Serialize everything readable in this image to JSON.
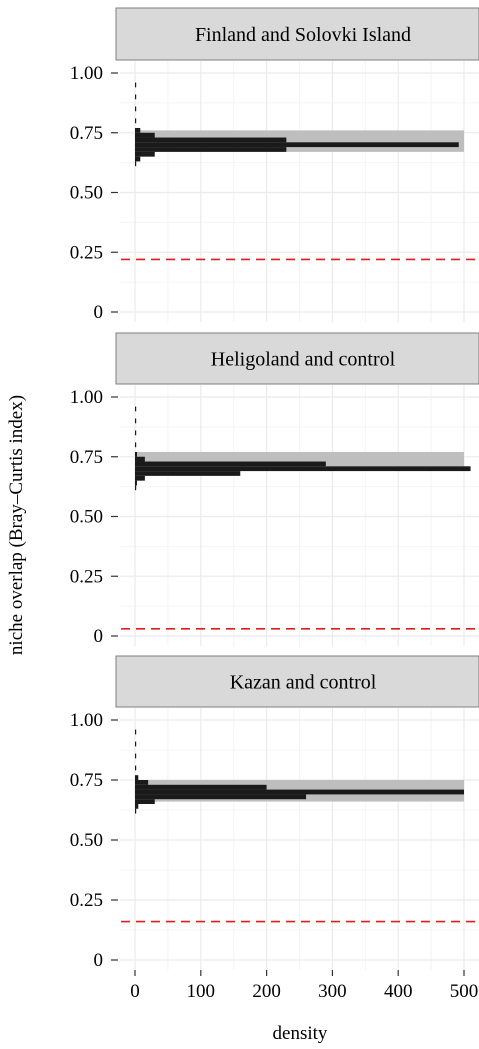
{
  "chart_data": {
    "type": "histogram",
    "xlabel": "density",
    "ylabel": "niche overlap (Bray–Curtis index)",
    "xlim": [
      0,
      500
    ],
    "ylim": [
      0,
      1
    ],
    "x_ticks": [
      0,
      100,
      200,
      300,
      400,
      500
    ],
    "y_ticks": [
      0,
      0.25,
      0.5,
      0.75,
      1.0
    ],
    "y_tick_labels": [
      "0",
      "0.25",
      "0.50",
      "0.75",
      "1.00"
    ],
    "grid": true,
    "colors": {
      "bars": "#1a1a1a",
      "band": "#bebebe",
      "threshold": "#e41a1c",
      "strip": "#d9d9d9",
      "grid": "#ebebeb"
    },
    "panels": [
      {
        "title": "Finland and Solovki Island",
        "threshold": 0.22,
        "band": [
          0.67,
          0.76
        ],
        "bars": [
          {
            "y": 0.62,
            "density": 1
          },
          {
            "y": 0.64,
            "density": 8
          },
          {
            "y": 0.66,
            "density": 30
          },
          {
            "y": 0.68,
            "density": 230
          },
          {
            "y": 0.7,
            "density": 492
          },
          {
            "y": 0.72,
            "density": 230
          },
          {
            "y": 0.74,
            "density": 30
          },
          {
            "y": 0.76,
            "density": 8
          },
          {
            "y": 0.8,
            "density": 1
          },
          {
            "y": 0.85,
            "density": 1
          },
          {
            "y": 0.9,
            "density": 1
          },
          {
            "y": 0.95,
            "density": 1
          }
        ]
      },
      {
        "title": "Heligoland and control",
        "threshold": 0.03,
        "band": [
          0.71,
          0.77
        ],
        "bars": [
          {
            "y": 0.62,
            "density": 1
          },
          {
            "y": 0.64,
            "density": 3
          },
          {
            "y": 0.66,
            "density": 15
          },
          {
            "y": 0.68,
            "density": 160
          },
          {
            "y": 0.7,
            "density": 510
          },
          {
            "y": 0.72,
            "density": 290
          },
          {
            "y": 0.74,
            "density": 15
          },
          {
            "y": 0.76,
            "density": 3
          },
          {
            "y": 0.8,
            "density": 1
          },
          {
            "y": 0.85,
            "density": 1
          },
          {
            "y": 0.9,
            "density": 1
          },
          {
            "y": 0.95,
            "density": 1
          }
        ]
      },
      {
        "title": "Kazan and control",
        "threshold": 0.16,
        "band": [
          0.66,
          0.75
        ],
        "bars": [
          {
            "y": 0.62,
            "density": 1
          },
          {
            "y": 0.64,
            "density": 5
          },
          {
            "y": 0.66,
            "density": 30
          },
          {
            "y": 0.68,
            "density": 260
          },
          {
            "y": 0.7,
            "density": 500
          },
          {
            "y": 0.72,
            "density": 200
          },
          {
            "y": 0.74,
            "density": 20
          },
          {
            "y": 0.76,
            "density": 5
          },
          {
            "y": 0.8,
            "density": 1
          },
          {
            "y": 0.85,
            "density": 1
          },
          {
            "y": 0.9,
            "density": 1
          },
          {
            "y": 0.95,
            "density": 1
          }
        ]
      }
    ]
  }
}
